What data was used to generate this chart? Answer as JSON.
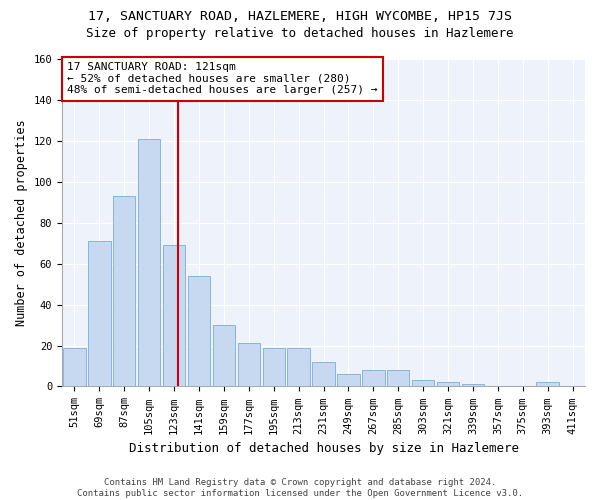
{
  "title": "17, SANCTUARY ROAD, HAZLEMERE, HIGH WYCOMBE, HP15 7JS",
  "subtitle": "Size of property relative to detached houses in Hazlemere",
  "xlabel": "Distribution of detached houses by size in Hazlemere",
  "ylabel": "Number of detached properties",
  "categories": [
    "51sqm",
    "69sqm",
    "87sqm",
    "105sqm",
    "123sqm",
    "141sqm",
    "159sqm",
    "177sqm",
    "195sqm",
    "213sqm",
    "231sqm",
    "249sqm",
    "267sqm",
    "285sqm",
    "303sqm",
    "321sqm",
    "339sqm",
    "357sqm",
    "375sqm",
    "393sqm",
    "411sqm"
  ],
  "values": [
    19,
    71,
    93,
    121,
    69,
    54,
    30,
    21,
    19,
    19,
    12,
    6,
    8,
    8,
    3,
    2,
    1,
    0,
    0,
    2,
    0
  ],
  "bar_color": "#c6d9f0",
  "bar_edge_color": "#7bafd4",
  "vline_x_index": 4,
  "vline_color": "#cc0000",
  "annotation_line1": "17 SANCTUARY ROAD: 121sqm",
  "annotation_line2": "← 52% of detached houses are smaller (280)",
  "annotation_line3": "48% of semi-detached houses are larger (257) →",
  "annotation_box_color": "#ffffff",
  "annotation_box_edge": "#cc0000",
  "ylim": [
    0,
    160
  ],
  "yticks": [
    0,
    20,
    40,
    60,
    80,
    100,
    120,
    140,
    160
  ],
  "bg_color": "#eef2fb",
  "footer": "Contains HM Land Registry data © Crown copyright and database right 2024.\nContains public sector information licensed under the Open Government Licence v3.0.",
  "title_fontsize": 9.5,
  "subtitle_fontsize": 9,
  "axis_label_fontsize": 8.5,
  "tick_fontsize": 7.5,
  "footer_fontsize": 6.5,
  "annotation_fontsize": 8
}
